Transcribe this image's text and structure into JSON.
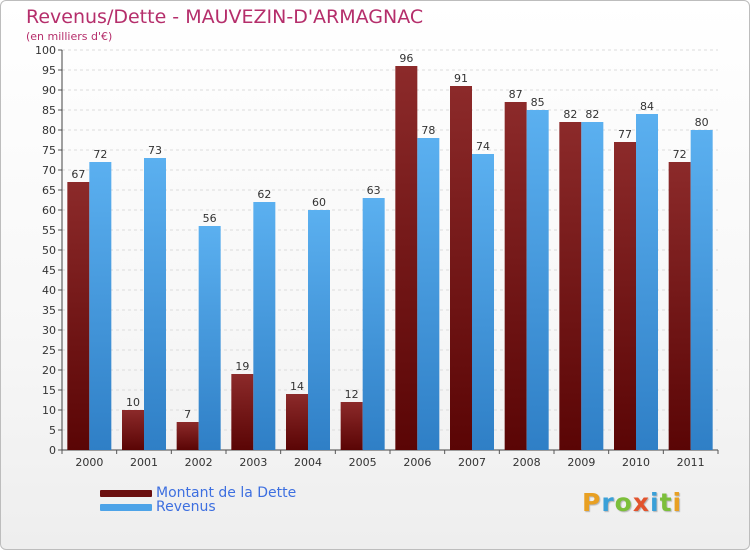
{
  "header": {
    "title": "Revenus/Dette - MAUVEZIN-D'ARMAGNAC",
    "subtitle": "(en milliers d'€)"
  },
  "chart_data": {
    "type": "bar",
    "title": "Revenus/Dette - MAUVEZIN-D'ARMAGNAC",
    "subtitle": "(en milliers d'€)",
    "categories": [
      "2000",
      "2001",
      "2002",
      "2003",
      "2004",
      "2005",
      "2006",
      "2007",
      "2008",
      "2009",
      "2010",
      "2011"
    ],
    "series": [
      {
        "name": "Montant de la Dette",
        "color": "#7a1f1f",
        "values": [
          67,
          10,
          7,
          19,
          14,
          12,
          96,
          91,
          87,
          82,
          77,
          72
        ]
      },
      {
        "name": "Revenus",
        "color": "#4da3e8",
        "values": [
          72,
          73,
          56,
          62,
          60,
          63,
          78,
          74,
          85,
          82,
          84,
          80
        ]
      }
    ],
    "ylim": [
      0,
      100
    ],
    "ytick_step": 5,
    "grid": true,
    "legend_position": "bottom-left"
  },
  "legend": {
    "items": [
      {
        "label": "Montant de la Dette",
        "color": "#6b0f0f"
      },
      {
        "label": "Revenus",
        "color": "#4da3e8"
      }
    ]
  },
  "logo": {
    "letters": [
      "P",
      "r",
      "o",
      "x",
      "i",
      "t",
      "i"
    ],
    "colors": [
      "#e8a023",
      "#3aa0d8",
      "#7cbf3a",
      "#e2532d",
      "#3aa0d8",
      "#7cbf3a",
      "#e8a023"
    ]
  }
}
